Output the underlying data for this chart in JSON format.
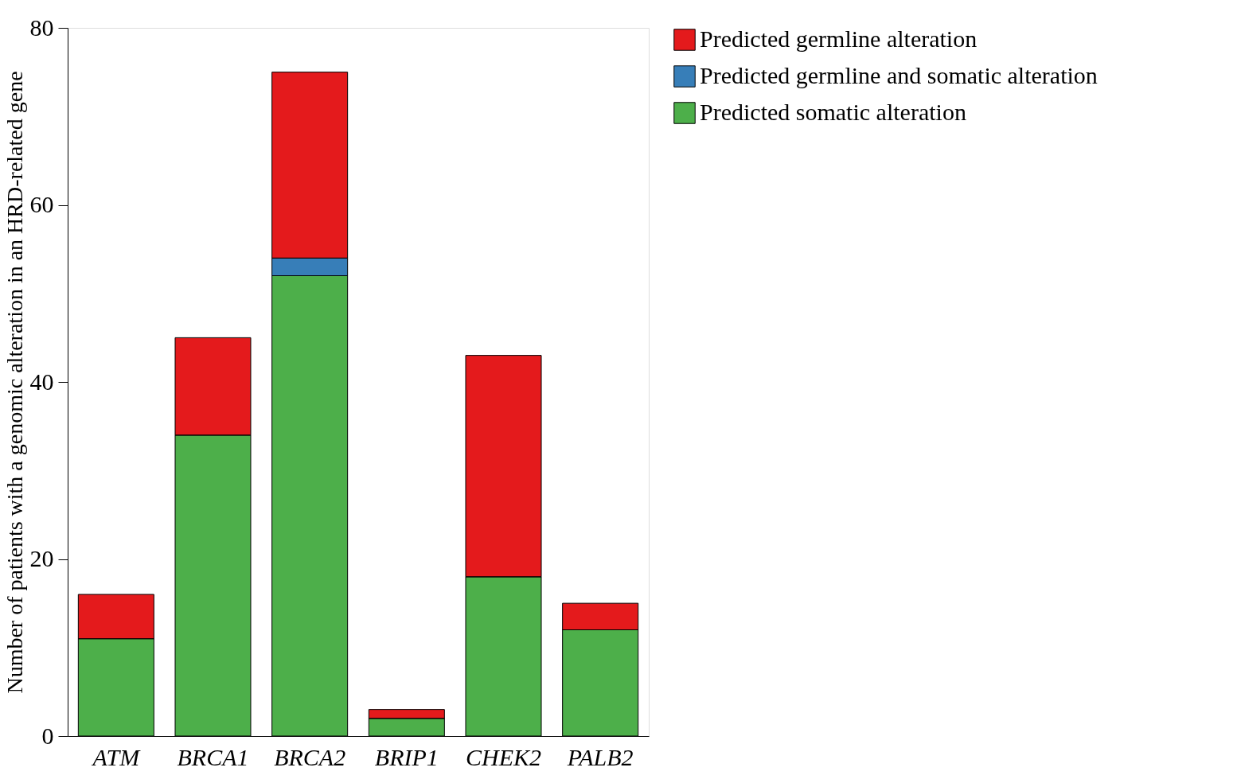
{
  "chart_data": {
    "type": "bar",
    "ylabel": "Number of patients with a genomic alteration in an HRD-related gene",
    "categories": [
      "ATM",
      "BRCA1",
      "BRCA2",
      "BRIP1",
      "CHEK2",
      "PALB2"
    ],
    "stacked": true,
    "ylim": [
      0,
      80
    ],
    "yticks": [
      0,
      20,
      40,
      60,
      80
    ],
    "grid": false,
    "legend": "right",
    "series": [
      {
        "name": "Predicted somatic alteration",
        "color": "#4daf4a",
        "values": [
          11,
          34,
          52,
          2,
          18,
          12
        ]
      },
      {
        "name": "Predicted germline and somatic alteration",
        "color": "#377eb8",
        "values": [
          0,
          0,
          2,
          0,
          0,
          0
        ]
      },
      {
        "name": "Predicted germline alteration",
        "color": "#e41a1c",
        "values": [
          5,
          11,
          21,
          1,
          25,
          3
        ]
      }
    ]
  }
}
